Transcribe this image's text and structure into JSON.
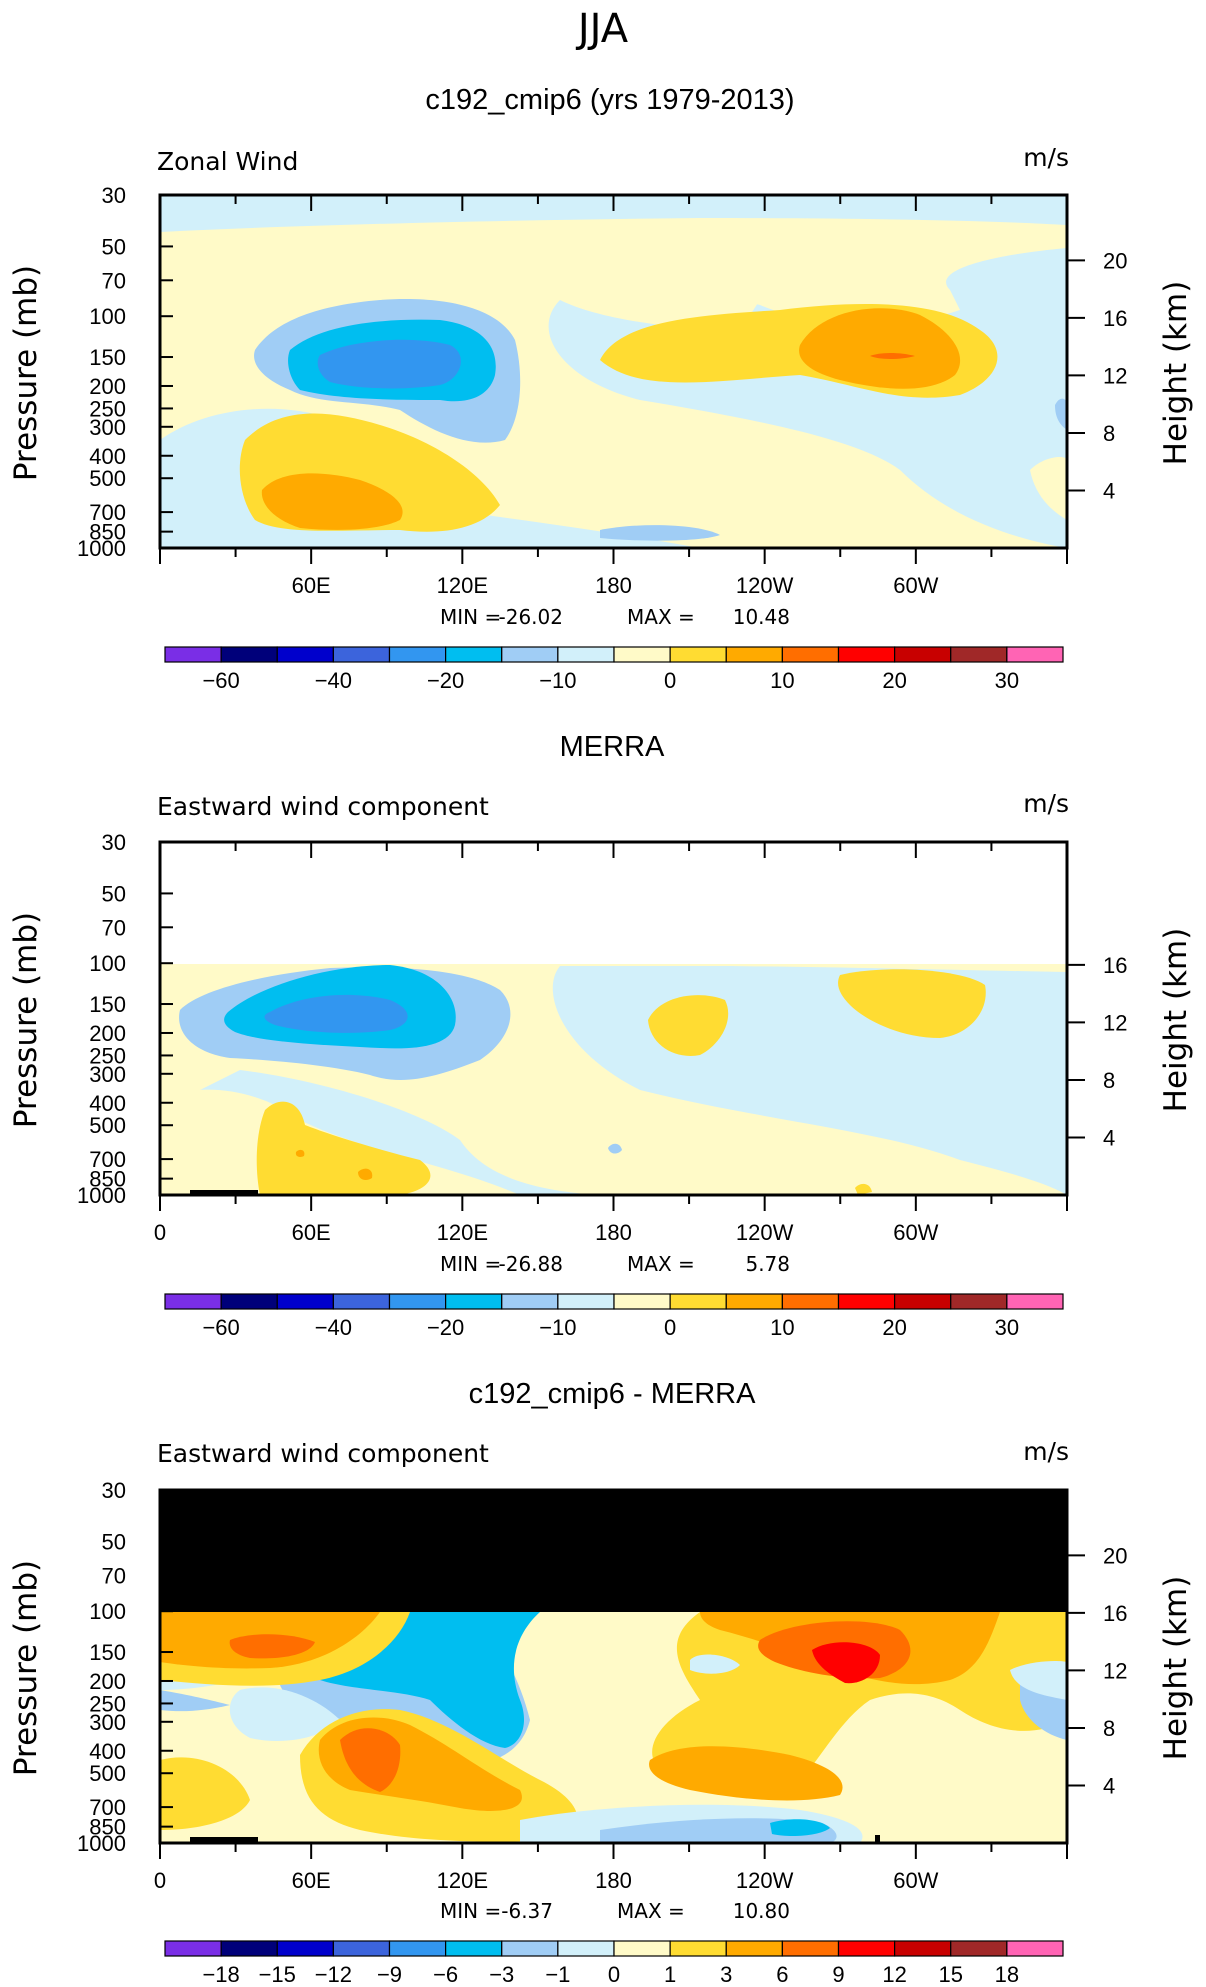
{
  "page_title": "JJA",
  "colors": {
    "level_colors": [
      "#7a2ee6",
      "#00007a",
      "#0000cc",
      "#3c64dc",
      "#3296f0",
      "#00bef0",
      "#a0cdf5",
      "#d2f0fa",
      "#fffac8",
      "#ffdc32",
      "#ffaa00",
      "#ff6e00",
      "#ff0000",
      "#c80000",
      "#a02828",
      "#ff64b4"
    ],
    "missing": "#000000"
  },
  "chart_data": [
    {
      "type": "heatmap",
      "title": "c192_cmip6 (yrs 1979-2013)",
      "left_label": "Zonal Wind",
      "units": "m/s",
      "ylabel": "Pressure (mb)",
      "ylabel_right": "Height (km)",
      "pressure_ticks": [
        "30",
        "50",
        "70",
        "100",
        "150",
        "200",
        "250",
        "300",
        "400",
        "500",
        "700",
        "850",
        "1000"
      ],
      "height_ticks": [
        "20",
        "16",
        "12",
        "8",
        "4"
      ],
      "x_ticks": [
        "60E",
        "120E",
        "180",
        "120W",
        "60W"
      ],
      "stats": {
        "min_label": "MIN =",
        "min": "-26.02",
        "max_label": "MAX =",
        "max": "10.48"
      },
      "colorbar_labels": [
        "-60",
        "-40",
        "-20",
        "-10",
        "0",
        "10",
        "20",
        "30"
      ]
    },
    {
      "type": "heatmap",
      "title": "MERRA",
      "left_label": "Eastward wind component",
      "units": "m/s",
      "ylabel": "Pressure (mb)",
      "ylabel_right": "Height (km)",
      "pressure_ticks": [
        "30",
        "50",
        "70",
        "100",
        "150",
        "200",
        "250",
        "300",
        "400",
        "500",
        "700",
        "850",
        "1000"
      ],
      "height_ticks": [
        "16",
        "12",
        "8",
        "4"
      ],
      "x_ticks": [
        "0",
        "60E",
        "120E",
        "180",
        "120W",
        "60W"
      ],
      "stats": {
        "min_label": "MIN =",
        "min": "-26.88",
        "max_label": "MAX =",
        "max": "5.78"
      },
      "colorbar_labels": [
        "-60",
        "-40",
        "-20",
        "-10",
        "0",
        "10",
        "20",
        "30"
      ]
    },
    {
      "type": "heatmap",
      "title": "c192_cmip6 - MERRA",
      "left_label": "Eastward wind component",
      "units": "m/s",
      "ylabel": "Pressure (mb)",
      "ylabel_right": "Height (km)",
      "pressure_ticks": [
        "30",
        "50",
        "70",
        "100",
        "150",
        "200",
        "250",
        "300",
        "400",
        "500",
        "700",
        "850",
        "1000"
      ],
      "height_ticks": [
        "20",
        "16",
        "12",
        "8",
        "4"
      ],
      "x_ticks": [
        "0",
        "60E",
        "120E",
        "180",
        "120W",
        "60W"
      ],
      "stats": {
        "min_label": "MIN =",
        "min": "-6.37",
        "max_label": "MAX =",
        "max": "10.80"
      },
      "colorbar_labels": [
        "-18",
        "-15",
        "-12",
        "-9",
        "-6",
        "-3",
        "-1",
        "0",
        "1",
        "3",
        "6",
        "9",
        "12",
        "15",
        "18"
      ]
    }
  ]
}
